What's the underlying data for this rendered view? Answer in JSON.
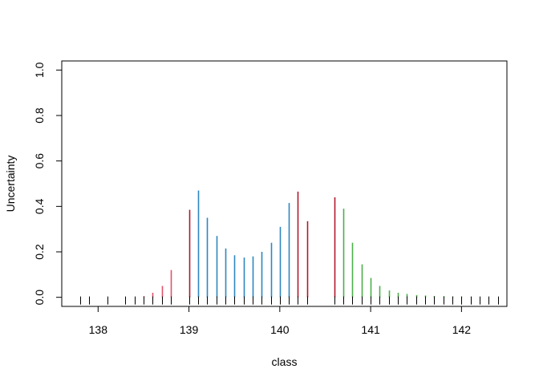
{
  "chart_data": {
    "type": "bar",
    "title": "",
    "xlabel": "class",
    "ylabel": "Uncertainty",
    "xlim": [
      137.6,
      142.5
    ],
    "ylim": [
      -0.04,
      1.04
    ],
    "xticks": [
      138,
      139,
      140,
      141,
      142
    ],
    "yticks": [
      0.0,
      0.2,
      0.4,
      0.6,
      0.8,
      1.0
    ],
    "xtick_labels": [
      "138",
      "139",
      "140",
      "141",
      "142"
    ],
    "ytick_labels": [
      "0.0",
      "0.2",
      "0.4",
      "0.6",
      "0.8",
      "1.0"
    ],
    "grid": false,
    "legend": "none",
    "rug_color": "#000000",
    "rug_x": [
      137.8,
      137.9,
      138.1,
      138.3,
      138.4,
      138.5,
      138.6,
      138.7,
      138.8,
      139.0,
      139.1,
      139.2,
      139.3,
      139.4,
      139.5,
      139.6,
      139.7,
      139.8,
      139.9,
      140.0,
      140.1,
      140.2,
      140.3,
      140.6,
      140.7,
      140.8,
      140.9,
      141.0,
      141.1,
      141.2,
      141.3,
      141.4,
      141.5,
      141.6,
      141.7,
      141.8,
      141.9,
      142.0,
      142.1,
      142.2,
      142.3,
      142.4
    ],
    "series": [
      {
        "color": "#DF536B",
        "x": [
          138.5,
          138.6,
          138.7,
          138.8
        ],
        "values": [
          0.005,
          0.02,
          0.05,
          0.12
        ]
      },
      {
        "color": "#B2182B",
        "x": [
          139.0,
          140.2,
          140.3,
          140.6
        ],
        "values": [
          0.385,
          0.465,
          0.335,
          0.44
        ]
      },
      {
        "color": "#2E86C1",
        "x": [
          139.1,
          139.2,
          139.3,
          139.4,
          139.5,
          139.6,
          139.7,
          139.8,
          139.9,
          140.0,
          140.1
        ],
        "values": [
          0.47,
          0.35,
          0.27,
          0.215,
          0.185,
          0.175,
          0.18,
          0.2,
          0.24,
          0.31,
          0.415
        ]
      },
      {
        "color": "#4DAF4A",
        "x": [
          140.7,
          140.8,
          140.9,
          141.0,
          141.1,
          141.2,
          141.3,
          141.4,
          141.5,
          141.6,
          141.7,
          141.8,
          141.9,
          142.0,
          142.1
        ],
        "values": [
          0.39,
          0.24,
          0.145,
          0.085,
          0.05,
          0.03,
          0.02,
          0.015,
          0.01,
          0.008,
          0.006,
          0.005,
          0.004,
          0.003,
          0.002
        ]
      }
    ]
  }
}
